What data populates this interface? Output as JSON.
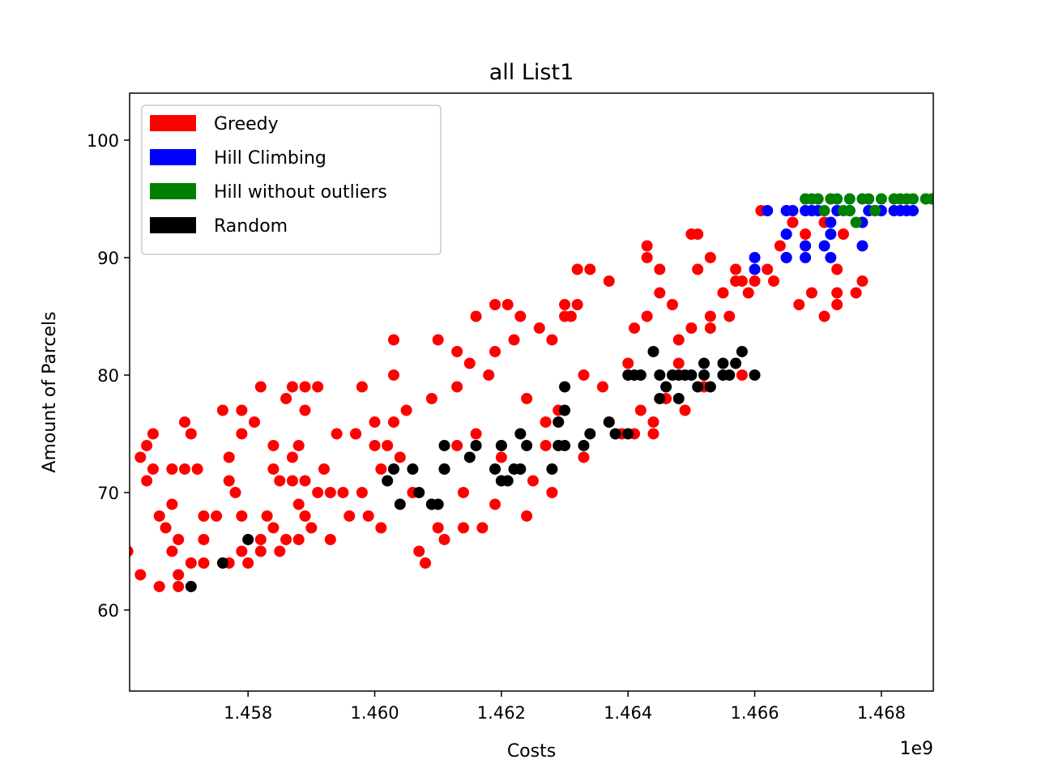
{
  "chart_data": {
    "type": "scatter",
    "title": "all List1",
    "xlabel": "Costs",
    "ylabel": "Amount of Parcels",
    "x_offset_label": "1e9",
    "xlim": [
      1.45613,
      1.46882
    ],
    "ylim": [
      53.1,
      104
    ],
    "xticks": [
      1.458,
      {
        "value": 1.46,
        "label": "1.460"
      },
      1.462,
      1.464,
      1.466,
      1.468
    ],
    "yticks": [
      60,
      70,
      80,
      90,
      100
    ],
    "legend": "upper left",
    "series": [
      {
        "name": "Greedy",
        "color": "#ff0000",
        "x": [
          1.4561,
          1.4563,
          1.4563,
          1.4564,
          1.4564,
          1.4565,
          1.4565,
          1.4566,
          1.4566,
          1.4567,
          1.4568,
          1.4568,
          1.4568,
          1.4569,
          1.4569,
          1.4569,
          1.457,
          1.457,
          1.4571,
          1.4571,
          1.4572,
          1.4573,
          1.4573,
          1.4573,
          1.4575,
          1.4576,
          1.4577,
          1.4577,
          1.4577,
          1.4578,
          1.4579,
          1.4579,
          1.4579,
          1.4579,
          1.458,
          1.4581,
          1.4582,
          1.4582,
          1.4582,
          1.4583,
          1.4584,
          1.4584,
          1.4584,
          1.4585,
          1.4585,
          1.4586,
          1.4586,
          1.4587,
          1.4587,
          1.4587,
          1.4588,
          1.4588,
          1.4588,
          1.4589,
          1.4589,
          1.4589,
          1.4589,
          1.459,
          1.4591,
          1.4591,
          1.4592,
          1.4593,
          1.4593,
          1.4594,
          1.4595,
          1.4596,
          1.4597,
          1.4597,
          1.4598,
          1.4598,
          1.4599,
          1.46,
          1.46,
          1.4601,
          1.4601,
          1.4602,
          1.4603,
          1.4603,
          1.4603,
          1.4604,
          1.4605,
          1.4606,
          1.4607,
          1.4608,
          1.4609,
          1.4609,
          1.461,
          1.461,
          1.4611,
          1.4611,
          1.4613,
          1.4613,
          1.4613,
          1.4614,
          1.4614,
          1.4615,
          1.4616,
          1.4616,
          1.4617,
          1.4618,
          1.4619,
          1.4619,
          1.4619,
          1.462,
          1.462,
          1.4621,
          1.4622,
          1.4623,
          1.4624,
          1.4624,
          1.4625,
          1.4626,
          1.4627,
          1.4627,
          1.4628,
          1.4628,
          1.4629,
          1.463,
          1.463,
          1.4631,
          1.4632,
          1.4632,
          1.4633,
          1.4633,
          1.4634,
          1.4636,
          1.4637,
          1.4637,
          1.4639,
          1.464,
          1.4641,
          1.4641,
          1.4642,
          1.4643,
          1.4643,
          1.4643,
          1.4644,
          1.4644,
          1.4645,
          1.4645,
          1.4646,
          1.4647,
          1.4648,
          1.4648,
          1.4649,
          1.465,
          1.465,
          1.4651,
          1.4651,
          1.4652,
          1.4653,
          1.4653,
          1.4653,
          1.4655,
          1.4656,
          1.4657,
          1.4657,
          1.4658,
          1.4658,
          1.4659,
          1.466,
          1.4661,
          1.4662,
          1.4663,
          1.4664,
          1.4665,
          1.4666,
          1.4667,
          1.4668,
          1.4668,
          1.4669,
          1.4671,
          1.4671,
          1.4673,
          1.4673,
          1.4673,
          1.4674,
          1.4676,
          1.4677
        ],
        "y": [
          65,
          63,
          73,
          74,
          71,
          72,
          75,
          68,
          62,
          67,
          69,
          72,
          65,
          62,
          66,
          63,
          76,
          72,
          75,
          64,
          72,
          68,
          66,
          64,
          68,
          77,
          64,
          73,
          71,
          70,
          77,
          68,
          75,
          65,
          64,
          76,
          79,
          66,
          65,
          68,
          72,
          74,
          67,
          71,
          65,
          66,
          78,
          71,
          73,
          79,
          69,
          66,
          74,
          71,
          77,
          68,
          79,
          67,
          79,
          70,
          72,
          66,
          70,
          75,
          70,
          68,
          75,
          75,
          79,
          70,
          68,
          76,
          74,
          72,
          67,
          74,
          83,
          80,
          76,
          73,
          77,
          70,
          65,
          64,
          69,
          78,
          67,
          83,
          72,
          66,
          82,
          79,
          74,
          67,
          70,
          81,
          85,
          75,
          67,
          80,
          69,
          82,
          86,
          73,
          74,
          86,
          83,
          85,
          78,
          68,
          71,
          84,
          74,
          76,
          70,
          83,
          77,
          85,
          86,
          85,
          89,
          86,
          80,
          73,
          89,
          79,
          88,
          76,
          75,
          81,
          84,
          75,
          77,
          85,
          90,
          91,
          76,
          75,
          89,
          87,
          78,
          86,
          83,
          81,
          77,
          92,
          84,
          89,
          92,
          79,
          90,
          84,
          85,
          87,
          85,
          89,
          88,
          80,
          88,
          87,
          88,
          94,
          89,
          88,
          91,
          90,
          93,
          86,
          92,
          91,
          87,
          85,
          93,
          89,
          87,
          86,
          92,
          87,
          88
        ]
      },
      {
        "name": "Hill Climbing",
        "color": "#0000ff",
        "x": [
          1.466,
          1.466,
          1.4662,
          1.4665,
          1.4665,
          1.4665,
          1.4666,
          1.4668,
          1.4668,
          1.4668,
          1.4669,
          1.467,
          1.4671,
          1.4672,
          1.4672,
          1.4672,
          1.4673,
          1.4675,
          1.4677,
          1.4677,
          1.4678,
          1.4679,
          1.468,
          1.4682,
          1.4683,
          1.4684,
          1.4685
        ],
        "y": [
          90,
          89,
          94,
          94,
          92,
          90,
          94,
          94,
          91,
          90,
          94,
          94,
          91,
          93,
          90,
          92,
          94,
          94,
          93,
          91,
          94,
          94,
          94,
          94,
          94,
          94,
          94
        ]
      },
      {
        "name": "Hill without outliers",
        "color": "#008000",
        "x": [
          1.4668,
          1.4669,
          1.467,
          1.4671,
          1.4672,
          1.4673,
          1.4674,
          1.4675,
          1.4675,
          1.4676,
          1.4677,
          1.4678,
          1.4679,
          1.468,
          1.4682,
          1.4683,
          1.4684,
          1.4685,
          1.4687,
          1.4688
        ],
        "y": [
          95,
          95,
          95,
          94,
          95,
          95,
          94,
          95,
          94,
          93,
          95,
          95,
          94,
          95,
          95,
          95,
          95,
          95,
          95,
          95
        ]
      },
      {
        "name": "Random",
        "color": "#000000",
        "x": [
          1.4571,
          1.4576,
          1.458,
          1.4602,
          1.4603,
          1.4604,
          1.4606,
          1.4607,
          1.4609,
          1.461,
          1.4611,
          1.4611,
          1.4615,
          1.4616,
          1.4619,
          1.462,
          1.462,
          1.4621,
          1.4622,
          1.4623,
          1.4623,
          1.4624,
          1.4628,
          1.4629,
          1.4629,
          1.463,
          1.463,
          1.463,
          1.4633,
          1.4634,
          1.4637,
          1.4638,
          1.464,
          1.464,
          1.4641,
          1.4642,
          1.4644,
          1.4645,
          1.4645,
          1.4646,
          1.4647,
          1.4648,
          1.4648,
          1.4649,
          1.465,
          1.4651,
          1.4652,
          1.4652,
          1.4653,
          1.4655,
          1.4655,
          1.4656,
          1.4657,
          1.4658,
          1.466
        ],
        "y": [
          62,
          64,
          66,
          71,
          72,
          69,
          72,
          70,
          69,
          69,
          74,
          72,
          73,
          74,
          72,
          71,
          74,
          71,
          72,
          75,
          72,
          74,
          72,
          74,
          76,
          79,
          77,
          74,
          74,
          75,
          76,
          75,
          75,
          80,
          80,
          80,
          82,
          80,
          78,
          79,
          80,
          80,
          78,
          80,
          80,
          79,
          80,
          81,
          79,
          80,
          81,
          80,
          81,
          82,
          80
        ]
      }
    ]
  }
}
